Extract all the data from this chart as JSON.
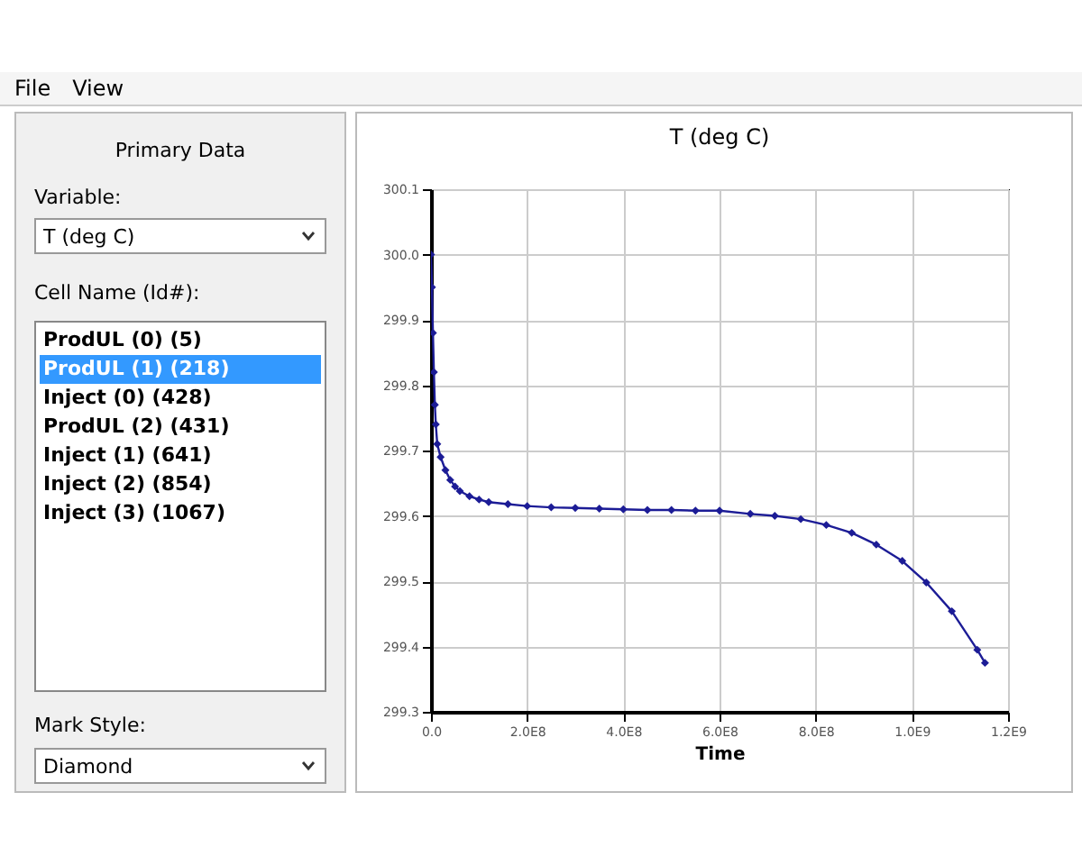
{
  "chart_data": [
    {
      "type": "other",
      "annotations": [
        "File",
        "View",
        "Primary Data",
        "Variable:",
        "T (deg C)",
        "Cell Name (Id#):",
        "ProdUL (0) (5)",
        "ProdUL (1) (218)",
        "Inject (0) (428)",
        "ProdUL (2) (431)",
        "Inject (1) (641)",
        "Inject (2) (854)",
        "Inject (3) (1067)",
        "Mark Style:",
        "Diamond"
      ]
    },
    {
      "type": "line",
      "title": "T (deg C)",
      "xlabel": "Time",
      "x": [
        0,
        2000000,
        4000000,
        6000000,
        8000000,
        10000000,
        13000000,
        20000000,
        30000000,
        40000000,
        50000000,
        60000000,
        80000000,
        100000000,
        120000000,
        160000000,
        200000000,
        250000000,
        300000000,
        350000000,
        400000000,
        450000000,
        500000000,
        550000000,
        600000000,
        664000000,
        715000000,
        769000000,
        822000000,
        875000000,
        926000000,
        980000000,
        1030000000,
        1083000000,
        1136000000,
        1152000000
      ],
      "series": [
        {
          "color": "#1c1c96",
          "values": [
            300.0,
            299.95,
            299.88,
            299.82,
            299.77,
            299.74,
            299.71,
            299.69,
            299.67,
            299.655,
            299.645,
            299.638,
            299.63,
            299.625,
            299.621,
            299.618,
            299.615,
            299.613,
            299.612,
            299.611,
            299.61,
            299.609,
            299.609,
            299.608,
            299.608,
            299.603,
            299.6,
            299.595,
            299.586,
            299.574,
            299.556,
            299.531,
            299.498,
            299.454,
            299.395,
            299.375
          ]
        }
      ],
      "xlim": [
        0,
        1200000000
      ],
      "xticks": [
        {
          "value": 0,
          "label": "0.0"
        },
        {
          "value": 200000000,
          "label": "2.0E8"
        },
        {
          "value": 400000000,
          "label": "4.0E8"
        },
        {
          "value": 600000000,
          "label": "6.0E8"
        },
        {
          "value": 800000000,
          "label": "8.0E8"
        },
        {
          "value": 1000000000,
          "label": "1.0E9"
        },
        {
          "value": 1200000000,
          "label": "1.2E9"
        }
      ],
      "ylim": [
        299.3,
        300.1
      ],
      "yticks": [
        299.3,
        299.4,
        299.5,
        299.6,
        299.7,
        299.8,
        299.9,
        {
          "value": 300,
          "label": "300.0"
        },
        300.1
      ],
      "grid": true,
      "marker": "diamond",
      "line_style": "solid"
    }
  ]
}
